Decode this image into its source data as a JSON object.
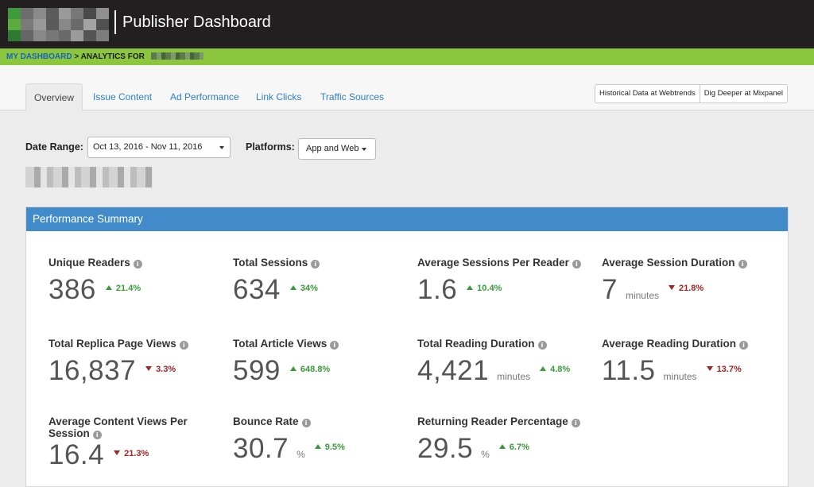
{
  "header": {
    "title": "Publisher Dashboard"
  },
  "breadcrumb": {
    "home": "MY DASHBOARD",
    "separator": ">",
    "current": "ANALYTICS FOR"
  },
  "tabs": [
    {
      "label": "Overview",
      "active": true
    },
    {
      "label": "Issue Content",
      "active": false
    },
    {
      "label": "Ad Performance",
      "active": false
    },
    {
      "label": "Link Clicks",
      "active": false
    },
    {
      "label": "Traffic Sources",
      "active": false
    }
  ],
  "external_buttons": [
    {
      "label": "Historical Data at Webtrends"
    },
    {
      "label": "Dig Deeper at Mixpanel"
    }
  ],
  "filters": {
    "date_range_label": "Date Range:",
    "date_range_value": "Oct 13, 2016 - Nov 11, 2016",
    "platforms_label": "Platforms:",
    "platforms_value": "App and Web"
  },
  "panel": {
    "title": "Performance Summary"
  },
  "metrics": [
    {
      "label": "Unique Readers",
      "value": "386",
      "unit": "",
      "change": "21.4%",
      "direction": "up"
    },
    {
      "label": "Total Sessions",
      "value": "634",
      "unit": "",
      "change": "34%",
      "direction": "up"
    },
    {
      "label": "Average Sessions Per Reader",
      "value": "1.6",
      "unit": "",
      "change": "10.4%",
      "direction": "up"
    },
    {
      "label": "Average Session Duration",
      "value": "7",
      "unit": "minutes",
      "change": "21.8%",
      "direction": "down"
    },
    {
      "label": "Total Replica Page Views",
      "value": "16,837",
      "unit": "",
      "change": "3.3%",
      "direction": "down"
    },
    {
      "label": "Total Article Views",
      "value": "599",
      "unit": "",
      "change": "648.8%",
      "direction": "up"
    },
    {
      "label": "Total Reading Duration",
      "value": "4,421",
      "unit": "minutes",
      "change": "4.8%",
      "direction": "up"
    },
    {
      "label": "Average Reading Duration",
      "value": "11.5",
      "unit": "minutes",
      "change": "13.7%",
      "direction": "down"
    },
    {
      "label": "Average Content Views Per Session",
      "value": "16.4",
      "unit": "",
      "change": "21.3%",
      "direction": "down"
    },
    {
      "label": "Bounce Rate",
      "value": "30.7",
      "unit": "%",
      "change": "9.5%",
      "direction": "up"
    },
    {
      "label": "Returning Reader Percentage",
      "value": "29.5",
      "unit": "%",
      "change": "6.7%",
      "direction": "up"
    }
  ],
  "colors": {
    "topbar": "#231f20",
    "accent_green": "#8cc63f",
    "panel_header": "#428bca",
    "up": "#3a9b3a",
    "down": "#a32525",
    "link": "#2f7fc7"
  },
  "icons": {
    "info": "info-circle-icon",
    "caret": "caret-down-icon",
    "up": "triangle-up-icon",
    "down": "triangle-down-icon"
  }
}
